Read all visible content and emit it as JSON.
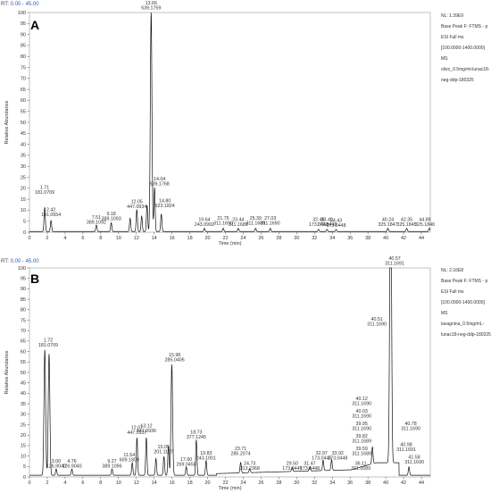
{
  "chart_data": [
    {
      "type": "line",
      "panel_label": "A",
      "range_header": {
        "prefix": "RT:",
        "value": "0.00 - 45.00"
      },
      "info": [
        "NL: 1.39E9",
        "Base Peak F: FTMS - p",
        "ESI Full ms",
        "[100.0000-1400.0000]",
        "MS",
        "olivo_0.5mg/ml-lunac18-",
        "neg-ddp-180325"
      ],
      "xlabel": "Time (min)",
      "ylabel": "Relative Abundance",
      "xlim": [
        0,
        45
      ],
      "ylim": [
        0,
        100
      ],
      "x_ticks": [
        0,
        2,
        4,
        6,
        8,
        10,
        12,
        14,
        16,
        18,
        20,
        22,
        24,
        26,
        28,
        30,
        32,
        34,
        36,
        38,
        40,
        42,
        44
      ],
      "y_ticks": [
        0,
        5,
        10,
        15,
        20,
        25,
        30,
        35,
        40,
        45,
        50,
        55,
        60,
        65,
        70,
        75,
        80,
        85,
        90,
        95,
        100
      ],
      "peaks": [
        {
          "rt": 1.71,
          "y": 11
        },
        {
          "rt": 2.42,
          "y": 5
        },
        {
          "rt": 7.51,
          "y": 3
        },
        {
          "rt": 9.18,
          "y": 4
        },
        {
          "rt": 11.3,
          "y": 6
        },
        {
          "rt": 12.05,
          "y": 10
        },
        {
          "rt": 12.6,
          "y": 7
        },
        {
          "rt": 13.2,
          "y": 12
        },
        {
          "rt": 13.66,
          "y": 100
        },
        {
          "rt": 14.04,
          "y": 20
        },
        {
          "rt": 14.8,
          "y": 8
        },
        {
          "rt": 19.64,
          "y": 1.5
        },
        {
          "rt": 21.75,
          "y": 1.5
        },
        {
          "rt": 23.44,
          "y": 1.5
        },
        {
          "rt": 25.39,
          "y": 1.5
        },
        {
          "rt": 27.03,
          "y": 1.5
        },
        {
          "rt": 32.46,
          "y": 1
        },
        {
          "rt": 33.4,
          "y": 1
        },
        {
          "rt": 34.43,
          "y": 1
        },
        {
          "rt": 40.24,
          "y": 1.5
        },
        {
          "rt": 42.35,
          "y": 1.5
        },
        {
          "rt": 44.89,
          "y": 1.5
        }
      ],
      "annotations": [
        {
          "rt_text": "1.71",
          "mz_text": "181.0709",
          "x": 1.71,
          "y": 17
        },
        {
          "rt_text": "2.42",
          "mz_text": "191.0554",
          "x": 2.42,
          "y": 7
        },
        {
          "rt_text": "7.51",
          "mz_text": "389.1092",
          "x": 7.51,
          "y": 3.5
        },
        {
          "rt_text": "9.18",
          "mz_text": "389.1093",
          "x": 9.18,
          "y": 5
        },
        {
          "rt_text": "12.05",
          "mz_text": "447.0934",
          "x": 12.05,
          "y": 10.5
        },
        {
          "rt_text": "13.66",
          "mz_text": "539.1759",
          "x": 13.66,
          "y": 101
        },
        {
          "rt_text": "14.04",
          "mz_text": "539.1768",
          "x": 14.6,
          "y": 21
        },
        {
          "rt_text": "14.80",
          "mz_text": "523.1824",
          "x": 15.2,
          "y": 11
        },
        {
          "rt_text": "19.64",
          "mz_text": "243.0992",
          "x": 19.64,
          "y": 2.5
        },
        {
          "rt_text": "21.75",
          "mz_text": "311.1690",
          "x": 21.75,
          "y": 3
        },
        {
          "rt_text": "23.44",
          "mz_text": "311.1689",
          "x": 23.44,
          "y": 2.5
        },
        {
          "rt_text": "25.39",
          "mz_text": "311.1689",
          "x": 25.39,
          "y": 3
        },
        {
          "rt_text": "27.03",
          "mz_text": "311.1690",
          "x": 27.03,
          "y": 3
        },
        {
          "rt_text": "32.46",
          "mz_text": "173.0448",
          "x": 32.46,
          "y": 2.5
        },
        {
          "rt_text": "33.40",
          "mz_text": "173.0448",
          "x": 33.4,
          "y": 2.5
        },
        {
          "rt_text": "34.43",
          "mz_text": "173.0448",
          "x": 34.43,
          "y": 2
        },
        {
          "rt_text": "40.24",
          "mz_text": "325.1847",
          "x": 40.24,
          "y": 2.5
        },
        {
          "rt_text": "42.35",
          "mz_text": "325.1845",
          "x": 42.35,
          "y": 2.5
        },
        {
          "rt_text": "44.89",
          "mz_text": "325.1846",
          "x": 44.4,
          "y": 2.5
        }
      ]
    },
    {
      "type": "line",
      "panel_label": "B",
      "range_header": {
        "prefix": "RT:",
        "value": "0.00 - 45.00"
      },
      "info": [
        "NL: 2.16E8",
        "Base Peak F: FTMS - p",
        "ESI Full ms",
        "[100.0000-1400.0000]",
        "MS",
        "lavagnina_0.5mg/mL-",
        "lunac18-neg-ddp-180325"
      ],
      "xlabel": "Time (min)",
      "ylabel": "Relative Abundance",
      "xlim": [
        0,
        45
      ],
      "ylim": [
        0,
        100
      ],
      "x_ticks": [
        0,
        2,
        4,
        6,
        8,
        10,
        12,
        14,
        16,
        18,
        20,
        22,
        24,
        26,
        28,
        30,
        32,
        34,
        36,
        38,
        40,
        42,
        44
      ],
      "y_ticks": [
        0,
        5,
        10,
        15,
        20,
        25,
        30,
        35,
        40,
        45,
        50,
        55,
        60,
        65,
        70,
        75,
        80,
        85,
        90,
        95,
        100
      ],
      "peaks": [
        {
          "rt": 1.72,
          "y": 60
        },
        {
          "rt": 2.2,
          "y": 58
        },
        {
          "rt": 3.0,
          "y": 3
        },
        {
          "rt": 4.76,
          "y": 3
        },
        {
          "rt": 9.27,
          "y": 3
        },
        {
          "rt": 11.54,
          "y": 6
        },
        {
          "rt": 12.07,
          "y": 18
        },
        {
          "rt": 13.12,
          "y": 18
        },
        {
          "rt": 14.2,
          "y": 8
        },
        {
          "rt": 15.1,
          "y": 9
        },
        {
          "rt": 15.6,
          "y": 14
        },
        {
          "rt": 15.98,
          "y": 53
        },
        {
          "rt": 17.6,
          "y": 4
        },
        {
          "rt": 18.73,
          "y": 17
        },
        {
          "rt": 19.83,
          "y": 7
        },
        {
          "rt": 23.71,
          "y": 5
        },
        {
          "rt": 24.73,
          "y": 2
        },
        {
          "rt": 29.5,
          "y": 2
        },
        {
          "rt": 31.47,
          "y": 2
        },
        {
          "rt": 32.97,
          "y": 5
        },
        {
          "rt": 33.92,
          "y": 5
        },
        {
          "rt": 38.5,
          "y": 8
        },
        {
          "rt": 40.51,
          "y": 70
        },
        {
          "rt": 40.57,
          "y": 100
        },
        {
          "rt": 42.6,
          "y": 4
        }
      ],
      "annotations": [
        {
          "rt_text": "1.72",
          "mz_text": "181.0709",
          "x": 2.1,
          "y": 62
        },
        {
          "rt_text": "3.00",
          "mz_text": "126.9040",
          "x": 3.0,
          "y": 4
        },
        {
          "rt_text": "4.76",
          "mz_text": "126.9040",
          "x": 4.76,
          "y": 4
        },
        {
          "rt_text": "9.27",
          "mz_text": "389.1096",
          "x": 9.27,
          "y": 4
        },
        {
          "rt_text": "11.54",
          "mz_text": "609.1809",
          "x": 11.2,
          "y": 7
        },
        {
          "rt_text": "12.07",
          "mz_text": "447.0937",
          "x": 12.07,
          "y": 20
        },
        {
          "rt_text": "13.12",
          "mz_text": "447.0936",
          "x": 13.12,
          "y": 21
        },
        {
          "rt_text": "15.05",
          "mz_text": "201.1127",
          "x": 15.05,
          "y": 11
        },
        {
          "rt_text": "15.98",
          "mz_text": "285.0406",
          "x": 16.3,
          "y": 55
        },
        {
          "rt_text": "17.60",
          "mz_text": "269.0458",
          "x": 17.6,
          "y": 5
        },
        {
          "rt_text": "18.73",
          "mz_text": "377.1245",
          "x": 18.73,
          "y": 18
        },
        {
          "rt_text": "19.83",
          "mz_text": "243.1001",
          "x": 19.83,
          "y": 8
        },
        {
          "rt_text": "23.71",
          "mz_text": "285.2074",
          "x": 23.71,
          "y": 10
        },
        {
          "rt_text": "24.73",
          "mz_text": "313.2368",
          "x": 24.73,
          "y": 3
        },
        {
          "rt_text": "29.50",
          "mz_text": "173.0448",
          "x": 29.5,
          "y": 3
        },
        {
          "rt_text": "31.47",
          "mz_text": "173.0448",
          "x": 31.47,
          "y": 3
        },
        {
          "rt_text": "32.97",
          "mz_text": "173.0446",
          "x": 32.8,
          "y": 8
        },
        {
          "rt_text": "33.92",
          "mz_text": "173.0448",
          "x": 34.6,
          "y": 8
        },
        {
          "rt_text": "36.11",
          "mz_text": "311.1689",
          "x": 37.2,
          "y": 3
        },
        {
          "rt_text": "39.59",
          "mz_text": "311.1689",
          "x": 37.3,
          "y": 10
        },
        {
          "rt_text": "39.82",
          "mz_text": "311.1689",
          "x": 37.3,
          "y": 16
        },
        {
          "rt_text": "39.95",
          "mz_text": "311.1690",
          "x": 37.3,
          "y": 22
        },
        {
          "rt_text": "40.03",
          "mz_text": "311.1690",
          "x": 37.3,
          "y": 28
        },
        {
          "rt_text": "40.12",
          "mz_text": "311.1690",
          "x": 37.3,
          "y": 34
        },
        {
          "rt_text": "40.51",
          "mz_text": "311.1690",
          "x": 39.0,
          "y": 72
        },
        {
          "rt_text": "40.57",
          "mz_text": "311.1691",
          "x": 41.0,
          "y": 101
        },
        {
          "rt_text": "40.78",
          "mz_text": "311.1690",
          "x": 42.8,
          "y": 22
        },
        {
          "rt_text": "40.98",
          "mz_text": "311.1691",
          "x": 42.3,
          "y": 12
        },
        {
          "rt_text": "41.58",
          "mz_text": "311.1690",
          "x": 43.2,
          "y": 6
        }
      ]
    }
  ]
}
